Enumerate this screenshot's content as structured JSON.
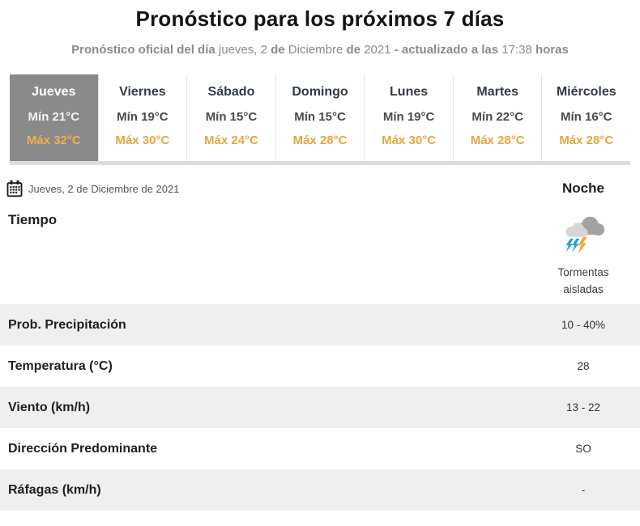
{
  "header": {
    "title": "Pronóstico para los próximos 7 días",
    "subtitle_segments": [
      {
        "text": "Pronóstico oficial del día ",
        "bold": true
      },
      {
        "text": "jueves, 2 ",
        "bold": false
      },
      {
        "text": "de",
        "bold": true
      },
      {
        "text": " Diciembre ",
        "bold": false
      },
      {
        "text": "de",
        "bold": true
      },
      {
        "text": " 2021 ",
        "bold": false
      },
      {
        "text": "- actualizado a las ",
        "bold": true
      },
      {
        "text": "17:38 ",
        "bold": false
      },
      {
        "text": "horas",
        "bold": true
      }
    ]
  },
  "day_tabs": [
    {
      "day": "Jueves",
      "min": "Mín 21°C",
      "max": "Máx 32°C",
      "selected": true
    },
    {
      "day": "Viernes",
      "min": "Mín 19°C",
      "max": "Máx 30°C",
      "selected": false
    },
    {
      "day": "Sábado",
      "min": "Mín 15°C",
      "max": "Máx 24°C",
      "selected": false
    },
    {
      "day": "Domingo",
      "min": "Mín 15°C",
      "max": "Máx 28°C",
      "selected": false
    },
    {
      "day": "Lunes",
      "min": "Mín 19°C",
      "max": "Máx 30°C",
      "selected": false
    },
    {
      "day": "Martes",
      "min": "Mín 22°C",
      "max": "Máx 28°C",
      "selected": false
    },
    {
      "day": "Miércoles",
      "min": "Mín 16°C",
      "max": "Máx 28°C",
      "selected": false
    }
  ],
  "detail": {
    "date_label": "Jueves, 2 de Diciembre de 2021",
    "period_label": "Noche",
    "weather_row_label": "Tiempo",
    "weather_condition": {
      "icon": "storm-icon",
      "line1": "Tormentas",
      "line2": "aisladas"
    },
    "rows": [
      {
        "label": "Prob. Precipitación",
        "value": "10 - 40%"
      },
      {
        "label": "Temperatura (°C)",
        "value": "28"
      },
      {
        "label": "Viento (km/h)",
        "value": "13 - 22"
      },
      {
        "label": "Dirección Predominante",
        "value": "SO"
      },
      {
        "label": "Ráfagas (km/h)",
        "value": "-"
      }
    ]
  },
  "colors": {
    "selected_tab_bg": "#8a8a8a",
    "max_temp_orange": "#e9a440",
    "row_stripe": "#efefef",
    "bolt_blue": "#2d9dcb",
    "bolt_orange": "#f2a63b",
    "cloud_dark": "#a2a2a2",
    "cloud_light": "#d6d6d6"
  }
}
